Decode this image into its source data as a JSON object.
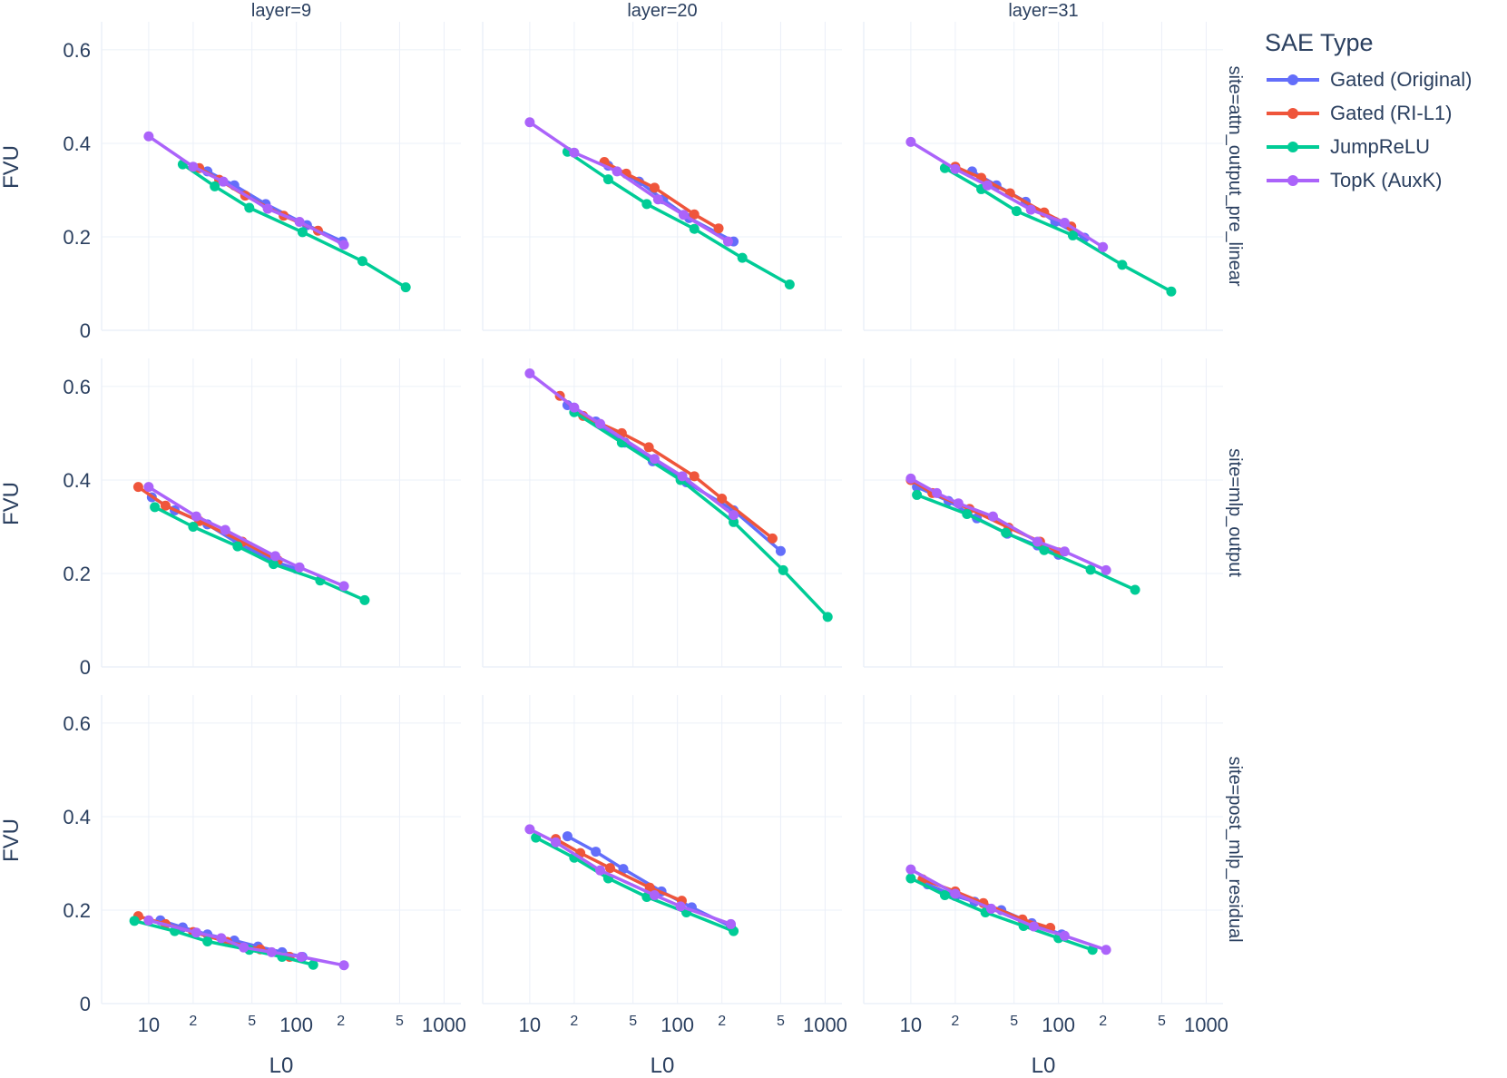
{
  "chart_data": {
    "type": "line",
    "xlabel": "L0",
    "ylabel": "FVU",
    "x_scale": "log",
    "xlim": [
      4.8,
      1300
    ],
    "ylim": [
      0,
      0.66
    ],
    "xticks": [
      {
        "value": 10,
        "label": "10",
        "major": true
      },
      {
        "value": 20,
        "label": "2",
        "major": false
      },
      {
        "value": 50,
        "label": "5",
        "major": false
      },
      {
        "value": 100,
        "label": "100",
        "major": true
      },
      {
        "value": 200,
        "label": "2",
        "major": false
      },
      {
        "value": 500,
        "label": "5",
        "major": false
      },
      {
        "value": 1000,
        "label": "1000",
        "major": true
      }
    ],
    "yticks": [
      {
        "value": 0,
        "label": "0"
      },
      {
        "value": 0.2,
        "label": "0.2"
      },
      {
        "value": 0.4,
        "label": "0.4"
      },
      {
        "value": 0.6,
        "label": "0.6"
      }
    ],
    "columns": [
      "layer=9",
      "layer=20",
      "layer=31"
    ],
    "rows": [
      "site=attn_output_pre_linear",
      "site=mlp_output",
      "site=post_mlp_residual"
    ],
    "legend": {
      "title": "SAE Type",
      "entries": [
        {
          "name": "Gated (Original)",
          "color": "#636efa"
        },
        {
          "name": "Gated (RI-L1)",
          "color": "#ef553b"
        },
        {
          "name": "JumpReLU",
          "color": "#00cc96"
        },
        {
          "name": "TopK (AuxK)",
          "color": "#ab63fa"
        }
      ]
    },
    "panels": [
      {
        "row": 0,
        "col": 0,
        "series": [
          {
            "name": "Gated (Original)",
            "x": [
              25,
              38,
              62,
              118,
              205
            ],
            "y": [
              0.34,
              0.31,
              0.27,
              0.225,
              0.19
            ]
          },
          {
            "name": "Gated (RI-L1)",
            "x": [
              22,
              30,
              45,
              82,
              140
            ],
            "y": [
              0.347,
              0.322,
              0.288,
              0.245,
              0.213
            ]
          },
          {
            "name": "JumpReLU",
            "x": [
              17,
              28,
              48,
              110,
              280,
              550
            ],
            "y": [
              0.355,
              0.308,
              0.262,
              0.21,
              0.148,
              0.092
            ]
          },
          {
            "name": "TopK (AuxK)",
            "x": [
              10,
              20,
              32,
              64,
              105,
              210
            ],
            "y": [
              0.415,
              0.35,
              0.318,
              0.26,
              0.232,
              0.183
            ]
          }
        ]
      },
      {
        "row": 0,
        "col": 1,
        "series": [
          {
            "name": "Gated (Original)",
            "x": [
              34,
              55,
              80,
              120,
              240
            ],
            "y": [
              0.352,
              0.318,
              0.28,
              0.24,
              0.19
            ]
          },
          {
            "name": "Gated (RI-L1)",
            "x": [
              32,
              45,
              70,
              130,
              190
            ],
            "y": [
              0.36,
              0.335,
              0.305,
              0.248,
              0.218
            ]
          },
          {
            "name": "JumpReLU",
            "x": [
              18,
              34,
              62,
              130,
              275,
              575
            ],
            "y": [
              0.382,
              0.323,
              0.27,
              0.217,
              0.155,
              0.098
            ]
          },
          {
            "name": "TopK (AuxK)",
            "x": [
              10,
              20,
              39,
              74,
              110,
              220
            ],
            "y": [
              0.445,
              0.38,
              0.34,
              0.28,
              0.247,
              0.19
            ]
          }
        ]
      },
      {
        "row": 0,
        "col": 2,
        "series": [
          {
            "name": "Gated (Original)",
            "x": [
              26,
              38,
              60,
              95,
              150
            ],
            "y": [
              0.34,
              0.31,
              0.275,
              0.232,
              0.198
            ]
          },
          {
            "name": "Gated (RI-L1)",
            "x": [
              20,
              30,
              47,
              80,
              122
            ],
            "y": [
              0.35,
              0.326,
              0.293,
              0.252,
              0.222
            ]
          },
          {
            "name": "JumpReLU",
            "x": [
              17,
              30,
              52,
              125,
              270,
              580
            ],
            "y": [
              0.347,
              0.302,
              0.255,
              0.203,
              0.14,
              0.083
            ]
          },
          {
            "name": "TopK (AuxK)",
            "x": [
              10,
              20,
              33,
              65,
              110,
              200
            ],
            "y": [
              0.403,
              0.345,
              0.31,
              0.258,
              0.23,
              0.178
            ]
          }
        ]
      },
      {
        "row": 1,
        "col": 0,
        "series": [
          {
            "name": "Gated (Original)",
            "x": [
              10.5,
              15,
              25,
              40,
              72,
              100
            ],
            "y": [
              0.363,
              0.335,
              0.305,
              0.265,
              0.225,
              0.21
            ]
          },
          {
            "name": "Gated (RI-L1)",
            "x": [
              8.5,
              13,
              22,
              43,
              75
            ],
            "y": [
              0.385,
              0.345,
              0.312,
              0.268,
              0.228
            ]
          },
          {
            "name": "JumpReLU",
            "x": [
              11,
              20,
              40,
              70,
              145,
              290
            ],
            "y": [
              0.342,
              0.3,
              0.258,
              0.22,
              0.185,
              0.143
            ]
          },
          {
            "name": "TopK (AuxK)",
            "x": [
              10,
              21,
              33,
              72,
              105,
              210
            ],
            "y": [
              0.385,
              0.322,
              0.293,
              0.237,
              0.213,
              0.173
            ]
          }
        ]
      },
      {
        "row": 1,
        "col": 1,
        "series": [
          {
            "name": "Gated (Original)",
            "x": [
              18,
              28,
              44,
              68,
              115,
              240,
              500
            ],
            "y": [
              0.56,
              0.525,
              0.48,
              0.44,
              0.395,
              0.335,
              0.248
            ]
          },
          {
            "name": "Gated (RI-L1)",
            "x": [
              16,
              23,
              42,
              64,
              130,
              200,
              440
            ],
            "y": [
              0.58,
              0.537,
              0.5,
              0.47,
              0.408,
              0.36,
              0.275
            ]
          },
          {
            "name": "JumpReLU",
            "x": [
              20,
              42,
              105,
              240,
              520,
              1040
            ],
            "y": [
              0.545,
              0.48,
              0.4,
              0.31,
              0.207,
              0.107
            ]
          },
          {
            "name": "TopK (AuxK)",
            "x": [
              10,
              20,
              30,
              70,
              108,
              240
            ],
            "y": [
              0.628,
              0.555,
              0.52,
              0.445,
              0.408,
              0.325
            ]
          }
        ]
      },
      {
        "row": 1,
        "col": 2,
        "series": [
          {
            "name": "Gated (Original)",
            "x": [
              11,
              18,
              28,
              45,
              72,
              100
            ],
            "y": [
              0.385,
              0.355,
              0.318,
              0.285,
              0.26,
              0.24
            ]
          },
          {
            "name": "Gated (RI-L1)",
            "x": [
              10,
              14,
              25,
              46,
              75,
              100
            ],
            "y": [
              0.4,
              0.372,
              0.338,
              0.298,
              0.268,
              0.245
            ]
          },
          {
            "name": "JumpReLU",
            "x": [
              11,
              24,
              44,
              80,
              165,
              330
            ],
            "y": [
              0.368,
              0.327,
              0.287,
              0.25,
              0.208,
              0.165
            ]
          },
          {
            "name": "TopK (AuxK)",
            "x": [
              10,
              15,
              21,
              36,
              72,
              110,
              210
            ],
            "y": [
              0.403,
              0.372,
              0.35,
              0.322,
              0.268,
              0.247,
              0.207
            ]
          }
        ]
      },
      {
        "row": 2,
        "col": 0,
        "series": [
          {
            "name": "Gated (Original)",
            "x": [
              12,
              17,
              25,
              38,
              55,
              80,
              110
            ],
            "y": [
              0.178,
              0.163,
              0.148,
              0.135,
              0.122,
              0.11,
              0.1
            ]
          },
          {
            "name": "Gated (RI-L1)",
            "x": [
              8.5,
              13,
              20,
              34,
              57,
              90
            ],
            "y": [
              0.187,
              0.17,
              0.153,
              0.132,
              0.116,
              0.1
            ]
          },
          {
            "name": "JumpReLU",
            "x": [
              8,
              15,
              25,
              48,
              80,
              130
            ],
            "y": [
              0.177,
              0.155,
              0.133,
              0.115,
              0.1,
              0.083
            ]
          },
          {
            "name": "TopK (AuxK)",
            "x": [
              10,
              21,
              31,
              44,
              68,
              108,
              210
            ],
            "y": [
              0.178,
              0.152,
              0.14,
              0.12,
              0.11,
              0.1,
              0.082
            ]
          }
        ]
      },
      {
        "row": 2,
        "col": 2,
        "series": [
          {
            "name": "Gated (Original)",
            "x": [
              13,
              20,
              27,
              41,
              66,
              105
            ],
            "y": [
              0.255,
              0.23,
              0.218,
              0.2,
              0.172,
              0.148
            ]
          },
          {
            "name": "Gated (RI-L1)",
            "x": [
              12,
              20,
              31,
              57,
              88
            ],
            "y": [
              0.266,
              0.24,
              0.215,
              0.18,
              0.162
            ]
          },
          {
            "name": "JumpReLU",
            "x": [
              10,
              17,
              32,
              58,
              100,
              170
            ],
            "y": [
              0.268,
              0.232,
              0.195,
              0.166,
              0.14,
              0.115
            ]
          },
          {
            "name": "TopK (AuxK)",
            "x": [
              10,
              20,
              35,
              68,
              110,
              210
            ],
            "y": [
              0.287,
              0.235,
              0.203,
              0.165,
              0.145,
              0.115
            ]
          }
        ]
      },
      {
        "row": 2,
        "col": 1,
        "series": [
          {
            "name": "Gated (Original)",
            "x": [
              18,
              28,
              43,
              78,
              125,
              230
            ],
            "y": [
              0.358,
              0.325,
              0.288,
              0.24,
              0.206,
              0.165
            ]
          },
          {
            "name": "Gated (RI-L1)",
            "x": [
              15,
              22,
              35,
              65,
              107
            ],
            "y": [
              0.352,
              0.322,
              0.29,
              0.248,
              0.22
            ]
          },
          {
            "name": "JumpReLU",
            "x": [
              11,
              20,
              34,
              62,
              115,
              240
            ],
            "y": [
              0.355,
              0.312,
              0.268,
              0.228,
              0.195,
              0.155
            ]
          },
          {
            "name": "TopK (AuxK)",
            "x": [
              10,
              15,
              30,
              70,
              105,
              230
            ],
            "y": [
              0.373,
              0.345,
              0.285,
              0.232,
              0.208,
              0.17
            ]
          }
        ]
      }
    ]
  }
}
